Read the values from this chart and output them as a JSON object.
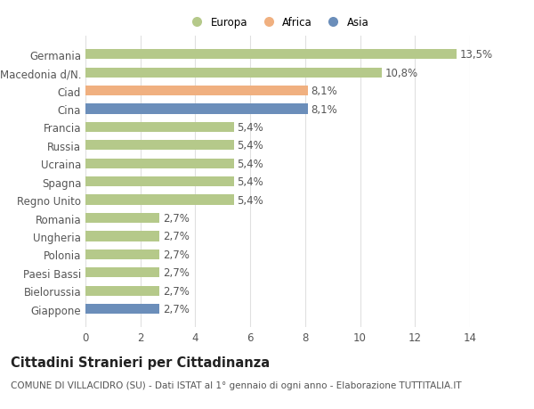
{
  "categories": [
    "Giappone",
    "Bielorussia",
    "Paesi Bassi",
    "Polonia",
    "Ungheria",
    "Romania",
    "Regno Unito",
    "Spagna",
    "Ucraina",
    "Russia",
    "Francia",
    "Cina",
    "Ciad",
    "Macedonia d/N.",
    "Germania"
  ],
  "values": [
    2.7,
    2.7,
    2.7,
    2.7,
    2.7,
    2.7,
    5.4,
    5.4,
    5.4,
    5.4,
    5.4,
    8.1,
    8.1,
    10.8,
    13.5
  ],
  "labels": [
    "2,7%",
    "2,7%",
    "2,7%",
    "2,7%",
    "2,7%",
    "2,7%",
    "5,4%",
    "5,4%",
    "5,4%",
    "5,4%",
    "5,4%",
    "8,1%",
    "8,1%",
    "10,8%",
    "13,5%"
  ],
  "colors": [
    "#6b8eba",
    "#b5c98a",
    "#b5c98a",
    "#b5c98a",
    "#b5c98a",
    "#b5c98a",
    "#b5c98a",
    "#b5c98a",
    "#b5c98a",
    "#b5c98a",
    "#b5c98a",
    "#6b8eba",
    "#f0b080",
    "#b5c98a",
    "#b5c98a"
  ],
  "legend_labels": [
    "Europa",
    "Africa",
    "Asia"
  ],
  "legend_colors": [
    "#b5c98a",
    "#f0b080",
    "#6b8eba"
  ],
  "title": "Cittadini Stranieri per Cittadinanza",
  "subtitle": "COMUNE DI VILLACIDRO (SU) - Dati ISTAT al 1° gennaio di ogni anno - Elaborazione TUTTITALIA.IT",
  "xlim": [
    0,
    14
  ],
  "xticks": [
    0,
    2,
    4,
    6,
    8,
    10,
    12,
    14
  ],
  "background_color": "#ffffff",
  "bar_height": 0.55,
  "grid_color": "#e0e0e0",
  "label_fontsize": 8.5,
  "ytick_fontsize": 8.5,
  "xtick_fontsize": 8.5,
  "title_fontsize": 10.5,
  "subtitle_fontsize": 7.5
}
